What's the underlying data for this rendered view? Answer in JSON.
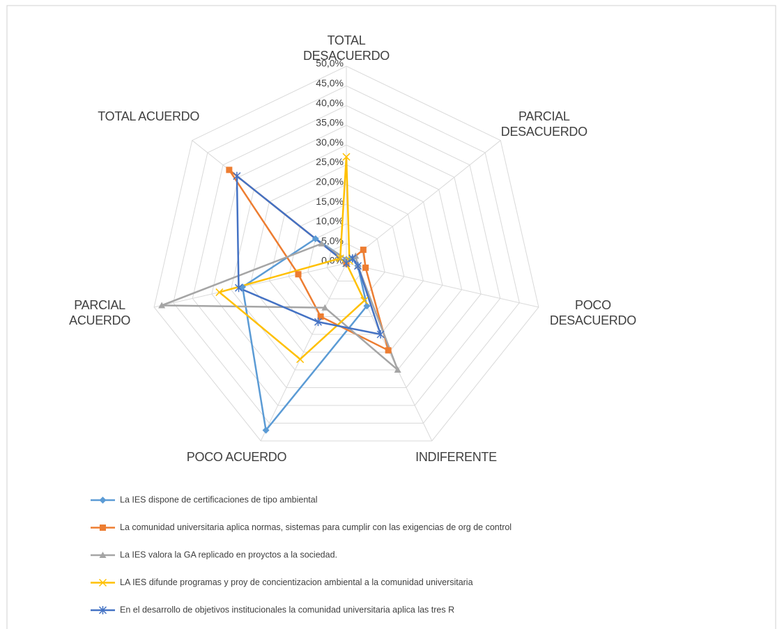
{
  "chart_data": {
    "type": "radar",
    "categories": [
      "TOTAL DESACUERDO",
      "PARCIAL DESACUERDO",
      "POCO DESACUERDO",
      "INDIFERENTE",
      "POCO ACUERDO",
      "PARCIAL ACUERDO",
      "TOTAL ACUERDO"
    ],
    "ylim": [
      0,
      50
    ],
    "yticks": [
      {
        "value": 0,
        "label": "0,0%"
      },
      {
        "value": 5,
        "label": "5,0%"
      },
      {
        "value": 10,
        "label": "10,0%"
      },
      {
        "value": 15,
        "label": "15,0%"
      },
      {
        "value": 20,
        "label": "20,0%"
      },
      {
        "value": 25,
        "label": "25,0%"
      },
      {
        "value": 30,
        "label": "30,0%"
      },
      {
        "value": 35,
        "label": "35,0%"
      },
      {
        "value": 40,
        "label": "40,0%"
      },
      {
        "value": 45,
        "label": "45,0%"
      },
      {
        "value": 50,
        "label": "50,0%"
      }
    ],
    "grid": true,
    "legend": "bottom",
    "series": [
      {
        "name": "La IES dispone de certificaciones de tipo ambiental",
        "color": "#5b9bd5",
        "marker": "diamond",
        "values": [
          1,
          2,
          3,
          12,
          47,
          27,
          10
        ]
      },
      {
        "name": "La comunidad universitaria aplica normas, sistemas para cumplir con las exigencias de org de control",
        "color": "#ed7d31",
        "marker": "square",
        "values": [
          0,
          5.5,
          5,
          24.5,
          15,
          12.5,
          38
        ]
      },
      {
        "name": "La IES valora la GA replicado en proyctos a la sociedad.",
        "color": "#a5a5a5",
        "marker": "triangle",
        "values": [
          1,
          3,
          3,
          30,
          12.5,
          48,
          8
        ]
      },
      {
        "name": "LA IES difunde programas y proy de concientizacion ambiental a la comunidad universitaria",
        "color": "#ffc000",
        "marker": "x",
        "values": [
          27,
          1,
          0,
          10.5,
          27,
          33,
          2
        ]
      },
      {
        "name": "En el desarrollo de objetivos institucionales la comunidad universitaria aplica las tres R",
        "color": "#4472c4",
        "marker": "star",
        "values": [
          0,
          2,
          3,
          20,
          16.5,
          28,
          35.5
        ]
      }
    ]
  }
}
